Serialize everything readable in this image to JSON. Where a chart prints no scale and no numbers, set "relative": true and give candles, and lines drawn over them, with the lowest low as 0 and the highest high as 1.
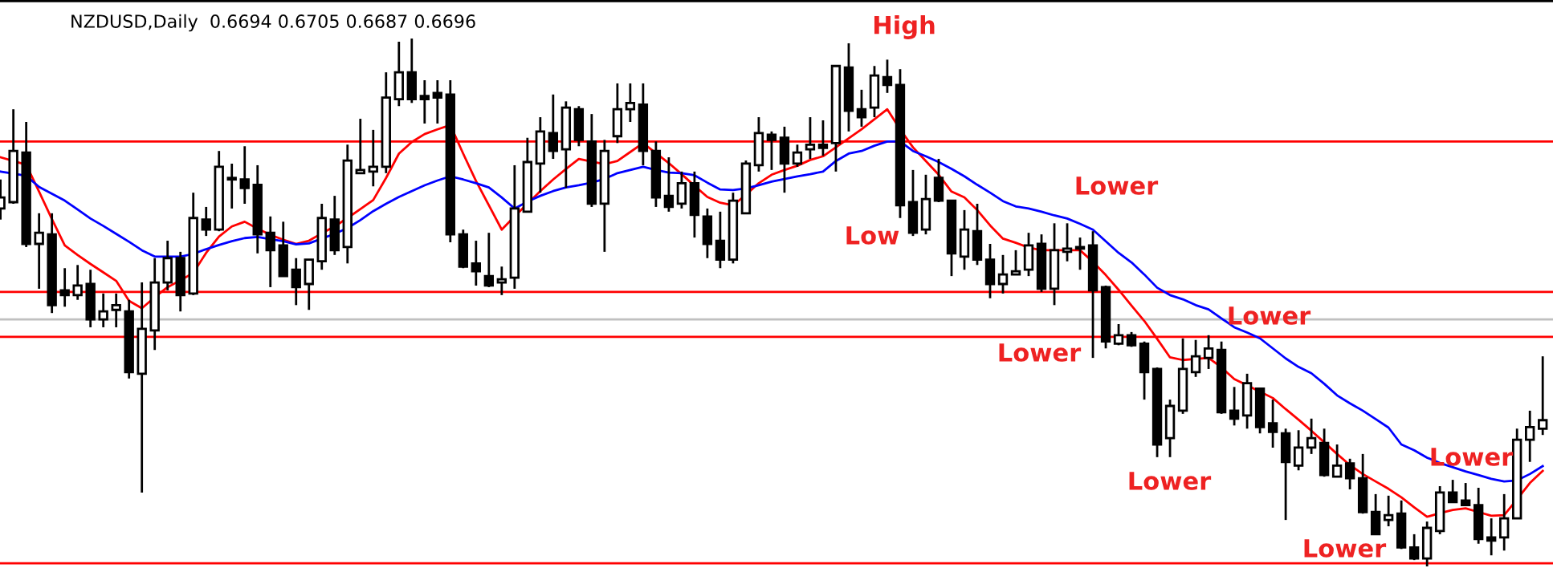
{
  "chart_data": {
    "type": "candlestick",
    "relative": true,
    "title": "NZDUSD,Daily  0.6694 0.6705 0.6687 0.6696",
    "categories": [
      null,
      null,
      null,
      null,
      null,
      null,
      null,
      null,
      null,
      null,
      null,
      null,
      null,
      null,
      null,
      null,
      null,
      null,
      null,
      null,
      null,
      null,
      null,
      null,
      null,
      null,
      null,
      null,
      null,
      null,
      null,
      null,
      null,
      null,
      null,
      null,
      null,
      null,
      null,
      null,
      null,
      null,
      null,
      null,
      null,
      null,
      null,
      null,
      null,
      null,
      null,
      null,
      null,
      null,
      null,
      null,
      null,
      null,
      null,
      null,
      null,
      null,
      null,
      null,
      null,
      null,
      null,
      null,
      null,
      null,
      null,
      null,
      null,
      null,
      null,
      null,
      null,
      null,
      null,
      null,
      null,
      null,
      null,
      null,
      null,
      null,
      null,
      null,
      null,
      null,
      null,
      null,
      null,
      null,
      null,
      null,
      null,
      null,
      null,
      null,
      null,
      null,
      null,
      null,
      null,
      null,
      null,
      null,
      null,
      null,
      null,
      null,
      null,
      null,
      null,
      null,
      null,
      null,
      null,
      null,
      null
    ],
    "ohlc": [
      [
        0.678,
        0.733,
        0.657,
        0.699
      ],
      [
        0.69,
        0.866,
        0.687,
        0.787
      ],
      [
        0.784,
        0.842,
        0.605,
        0.611
      ],
      [
        0.611,
        0.669,
        0.526,
        0.632
      ],
      [
        0.629,
        0.669,
        0.48,
        0.495
      ],
      [
        0.523,
        0.565,
        0.492,
        0.514
      ],
      [
        0.514,
        0.571,
        0.505,
        0.532
      ],
      [
        0.535,
        0.562,
        0.453,
        0.468
      ],
      [
        0.468,
        0.517,
        0.453,
        0.483
      ],
      [
        0.486,
        0.517,
        0.453,
        0.495
      ],
      [
        0.483,
        0.505,
        0.356,
        0.368
      ],
      [
        0.365,
        0.538,
        0.14,
        0.45
      ],
      [
        0.447,
        0.584,
        0.41,
        0.538
      ],
      [
        0.538,
        0.617,
        0.523,
        0.584
      ],
      [
        0.584,
        0.596,
        0.483,
        0.514
      ],
      [
        0.517,
        0.708,
        0.514,
        0.66
      ],
      [
        0.657,
        0.681,
        0.626,
        0.638
      ],
      [
        0.638,
        0.787,
        0.635,
        0.757
      ],
      [
        0.736,
        0.763,
        0.678,
        0.733
      ],
      [
        0.733,
        0.796,
        0.687,
        0.717
      ],
      [
        0.723,
        0.76,
        0.593,
        0.629
      ],
      [
        0.632,
        0.663,
        0.529,
        0.599
      ],
      [
        0.608,
        0.653,
        0.55,
        0.55
      ],
      [
        0.562,
        0.584,
        0.495,
        0.529
      ],
      [
        0.535,
        0.581,
        0.486,
        0.581
      ],
      [
        0.578,
        0.687,
        0.562,
        0.66
      ],
      [
        0.657,
        0.702,
        0.59,
        0.599
      ],
      [
        0.605,
        0.799,
        0.574,
        0.769
      ],
      [
        0.745,
        0.848,
        0.745,
        0.751
      ],
      [
        0.748,
        0.827,
        0.72,
        0.757
      ],
      [
        0.757,
        0.936,
        0.745,
        0.888
      ],
      [
        0.885,
        0.994,
        0.872,
        0.936
      ],
      [
        0.936,
        1,
        0.878,
        0.885
      ],
      [
        0.891,
        0.921,
        0.839,
        0.885
      ],
      [
        0.897,
        0.921,
        0.839,
        0.888
      ],
      [
        0.894,
        0.921,
        0.614,
        0.629
      ],
      [
        0.629,
        0.638,
        0.565,
        0.568
      ],
      [
        0.574,
        0.617,
        0.532,
        0.559
      ],
      [
        0.55,
        0.632,
        0.529,
        0.532
      ],
      [
        0.538,
        0.568,
        0.514,
        0.544
      ],
      [
        0.547,
        0.76,
        0.526,
        0.678
      ],
      [
        0.672,
        0.812,
        0.672,
        0.766
      ],
      [
        0.763,
        0.851,
        0.708,
        0.824
      ],
      [
        0.821,
        0.894,
        0.772,
        0.787
      ],
      [
        0.79,
        0.881,
        0.717,
        0.869
      ],
      [
        0.866,
        0.872,
        0.796,
        0.808
      ],
      [
        0.805,
        0.857,
        0.681,
        0.687
      ],
      [
        0.687,
        0.808,
        0.596,
        0.787
      ],
      [
        0.815,
        0.915,
        0.802,
        0.866
      ],
      [
        0.866,
        0.915,
        0.842,
        0.878
      ],
      [
        0.875,
        0.915,
        0.76,
        0.787
      ],
      [
        0.787,
        0.805,
        0.681,
        0.699
      ],
      [
        0.702,
        0.775,
        0.672,
        0.681
      ],
      [
        0.687,
        0.748,
        0.678,
        0.726
      ],
      [
        0.726,
        0.748,
        0.623,
        0.666
      ],
      [
        0.663,
        0.678,
        0.584,
        0.611
      ],
      [
        0.617,
        0.672,
        0.565,
        0.581
      ],
      [
        0.581,
        0.708,
        0.574,
        0.693
      ],
      [
        0.669,
        0.769,
        0.669,
        0.763
      ],
      [
        0.76,
        0.851,
        0.748,
        0.821
      ],
      [
        0.818,
        0.824,
        0.751,
        0.808
      ],
      [
        0.812,
        0.833,
        0.708,
        0.763
      ],
      [
        0.763,
        0.799,
        0.757,
        0.784
      ],
      [
        0.79,
        0.851,
        0.772,
        0.799
      ],
      [
        0.799,
        0.845,
        0.778,
        0.793
      ],
      [
        0.802,
        0.948,
        0.748,
        0.948
      ],
      [
        0.945,
        0.991,
        0.824,
        0.863
      ],
      [
        0.866,
        0.903,
        0.833,
        0.851
      ],
      [
        0.869,
        0.948,
        0.851,
        0.93
      ],
      [
        0.927,
        0.96,
        0.897,
        0.912
      ],
      [
        0.912,
        0.942,
        0.66,
        0.684
      ],
      [
        0.69,
        0.751,
        0.626,
        0.632
      ],
      [
        0.638,
        0.742,
        0.629,
        0.696
      ],
      [
        0.736,
        0.772,
        0.69,
        0.693
      ],
      [
        0.693,
        0.693,
        0.55,
        0.593
      ],
      [
        0.587,
        0.675,
        0.562,
        0.638
      ],
      [
        0.635,
        0.687,
        0.571,
        0.581
      ],
      [
        0.581,
        0.611,
        0.508,
        0.535
      ],
      [
        0.535,
        0.59,
        0.517,
        0.553
      ],
      [
        0.553,
        0.599,
        0.553,
        0.559
      ],
      [
        0.562,
        0.632,
        0.55,
        0.608
      ],
      [
        0.611,
        0.629,
        0.52,
        0.526
      ],
      [
        0.526,
        0.65,
        0.495,
        0.599
      ],
      [
        0.596,
        0.65,
        0.578,
        0.602
      ],
      [
        0.605,
        0.623,
        0.562,
        0.602
      ],
      [
        0.608,
        0.635,
        0.395,
        0.523
      ],
      [
        0.529,
        0.532,
        0.413,
        0.426
      ],
      [
        0.422,
        0.459,
        0.419,
        0.438
      ],
      [
        0.438,
        0.444,
        0.416,
        0.419
      ],
      [
        0.422,
        0.426,
        0.316,
        0.368
      ],
      [
        0.374,
        0.377,
        0.207,
        0.231
      ],
      [
        0.243,
        0.316,
        0.207,
        0.304
      ],
      [
        0.295,
        0.432,
        0.289,
        0.374
      ],
      [
        0.368,
        0.429,
        0.359,
        0.398
      ],
      [
        0.395,
        0.438,
        0.374,
        0.413
      ],
      [
        0.41,
        0.426,
        0.289,
        0.292
      ],
      [
        0.295,
        0.34,
        0.267,
        0.28
      ],
      [
        0.286,
        0.365,
        0.261,
        0.347
      ],
      [
        0.337,
        0.337,
        0.252,
        0.264
      ],
      [
        0.271,
        0.316,
        0.225,
        0.255
      ],
      [
        0.252,
        0.261,
        0.088,
        0.198
      ],
      [
        0.191,
        0.258,
        0.182,
        0.225
      ],
      [
        0.225,
        0.28,
        0.213,
        0.243
      ],
      [
        0.234,
        0.261,
        0.17,
        0.173
      ],
      [
        0.17,
        0.231,
        0.17,
        0.191
      ],
      [
        0.195,
        0.204,
        0.146,
        0.167
      ],
      [
        0.167,
        0.213,
        0.1,
        0.103
      ],
      [
        0.103,
        0.137,
        0.061,
        0.061
      ],
      [
        0.088,
        0.134,
        0.076,
        0.097
      ],
      [
        0.1,
        0.125,
        0.033,
        0.036
      ],
      [
        0.036,
        0.061,
        0.012,
        0.015
      ],
      [
        0.015,
        0.085,
        0,
        0.073
      ],
      [
        0.067,
        0.152,
        0.061,
        0.14
      ],
      [
        0.14,
        0.164,
        0.122,
        0.122
      ],
      [
        0.125,
        0.158,
        0.116,
        0.116
      ],
      [
        0.116,
        0.149,
        0.043,
        0.052
      ],
      [
        0.055,
        0.091,
        0.021,
        0.049
      ],
      [
        0.055,
        0.137,
        0.03,
        0.091
      ],
      [
        0.091,
        0.261,
        0.091,
        0.24
      ],
      [
        0.24,
        0.295,
        0.198,
        0.264
      ],
      [
        0.261,
        0.398,
        0.249,
        0.277
      ]
    ],
    "series": [
      {
        "type": "line",
        "color": "#ff0000",
        "values": [
          0.775,
          0.768,
          0.761,
          0.71,
          0.658,
          0.608,
          0.59,
          0.573,
          0.557,
          0.541,
          0.503,
          0.489,
          0.51,
          0.529,
          0.542,
          0.556,
          0.594,
          0.625,
          0.644,
          0.653,
          0.64,
          0.628,
          0.619,
          0.611,
          0.617,
          0.631,
          0.644,
          0.66,
          0.677,
          0.694,
          0.736,
          0.782,
          0.804,
          0.819,
          0.828,
          0.836,
          0.782,
          0.73,
          0.684,
          0.638,
          0.663,
          0.687,
          0.711,
          0.733,
          0.753,
          0.772,
          0.767,
          0.762,
          0.768,
          0.785,
          0.802,
          0.783,
          0.764,
          0.743,
          0.721,
          0.7,
          0.689,
          0.684,
          0.704,
          0.726,
          0.742,
          0.751,
          0.759,
          0.77,
          0.777,
          0.794,
          0.811,
          0.828,
          0.847,
          0.866,
          0.828,
          0.794,
          0.768,
          0.742,
          0.71,
          0.699,
          0.675,
          0.646,
          0.621,
          0.613,
          0.604,
          0.599,
          0.599,
          0.599,
          0.599,
          0.577,
          0.552,
          0.524,
          0.494,
          0.465,
          0.431,
          0.396,
          0.391,
          0.393,
          0.395,
          0.377,
          0.355,
          0.343,
          0.331,
          0.319,
          0.298,
          0.278,
          0.257,
          0.235,
          0.213,
          0.192,
          0.175,
          0.161,
          0.147,
          0.131,
          0.112,
          0.094,
          0.101,
          0.107,
          0.11,
          0.103,
          0.096,
          0.097,
          0.127,
          0.158,
          0.181
        ]
      },
      {
        "type": "line",
        "color": "#0000ff",
        "values": [
          0.748,
          0.744,
          0.74,
          0.719,
          0.706,
          0.693,
          0.676,
          0.659,
          0.645,
          0.63,
          0.615,
          0.599,
          0.587,
          0.587,
          0.587,
          0.592,
          0.601,
          0.609,
          0.616,
          0.622,
          0.624,
          0.62,
          0.616,
          0.61,
          0.612,
          0.621,
          0.63,
          0.641,
          0.656,
          0.673,
          0.687,
          0.7,
          0.711,
          0.722,
          0.731,
          0.739,
          0.733,
          0.726,
          0.718,
          0.699,
          0.678,
          0.691,
          0.702,
          0.711,
          0.718,
          0.722,
          0.727,
          0.734,
          0.745,
          0.751,
          0.757,
          0.751,
          0.746,
          0.745,
          0.741,
          0.727,
          0.714,
          0.713,
          0.716,
          0.722,
          0.729,
          0.734,
          0.739,
          0.743,
          0.748,
          0.768,
          0.782,
          0.787,
          0.797,
          0.805,
          0.805,
          0.787,
          0.777,
          0.766,
          0.753,
          0.739,
          0.723,
          0.708,
          0.692,
          0.682,
          0.678,
          0.672,
          0.665,
          0.659,
          0.649,
          0.638,
          0.616,
          0.594,
          0.576,
          0.553,
          0.528,
          0.514,
          0.506,
          0.495,
          0.487,
          0.47,
          0.453,
          0.443,
          0.432,
          0.413,
          0.394,
          0.378,
          0.366,
          0.346,
          0.324,
          0.309,
          0.295,
          0.279,
          0.263,
          0.231,
          0.22,
          0.206,
          0.196,
          0.188,
          0.18,
          0.173,
          0.166,
          0.161,
          0.163,
          0.175,
          0.19
        ]
      }
    ],
    "ref_lines": [
      {
        "axis": "y",
        "value": 0.805,
        "color": "#ff0000"
      },
      {
        "axis": "y",
        "value": 0.52,
        "color": "#ff0000"
      },
      {
        "axis": "y",
        "value": 0.468,
        "color": "#c0c0c0"
      },
      {
        "axis": "y",
        "value": 0.435,
        "color": "#ff0000"
      },
      {
        "axis": "y",
        "value": 0.006,
        "color": "#ff0000"
      }
    ],
    "annotations": [
      "High",
      "Lower",
      "Low",
      "Lower",
      "Lower",
      "Lower",
      "Lower",
      "Lower"
    ]
  }
}
